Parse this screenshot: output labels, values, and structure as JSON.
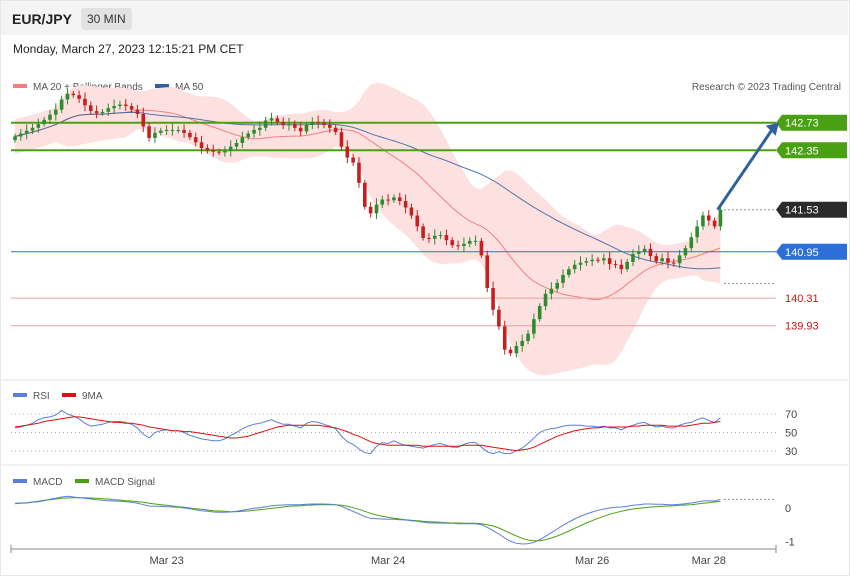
{
  "header": {
    "symbol": "EUR/JPY",
    "timeframe": "30 MIN",
    "datetime": "Monday, March 27, 2023 12:15:21 PM CET"
  },
  "legend": {
    "ma20_label": "MA 20 + Bollinger Bands",
    "ma50_label": "MA 50",
    "credit": "Research © 2023 Trading Central",
    "rsi_label": "RSI",
    "rsi_ma_label": "9MA",
    "macd_label": "MACD",
    "macd_signal_label": "MACD Signal"
  },
  "colors": {
    "ma20": "#f08080",
    "ma50": "#2f5f9e",
    "bb_fill": "#fde1e1",
    "bull": "#2e8b2e",
    "bear": "#c81e1e",
    "resistance": "#4aa013",
    "pivot": "#2d6fd8",
    "support": "#e8a0a0",
    "support_text": "#cc1111",
    "last": "#2b2b2b",
    "arrow": "#2f5f9e",
    "rsi": "#5b7fd6",
    "rsi_ma": "#dd1111",
    "macd": "#5b7fd6",
    "macd_signal": "#4aa013"
  },
  "chart_data": [
    {
      "type": "candlestick",
      "ylim": [
        139.25,
        143.25
      ],
      "x_ticks": [
        "Mar 23",
        "Mar 24",
        "Mar 26",
        "Mar 28"
      ],
      "x_tick_index": [
        26,
        64,
        99,
        119
      ],
      "levels": [
        {
          "label": "142.73",
          "value": 142.73,
          "kind": "resistance"
        },
        {
          "label": "142.35",
          "value": 142.35,
          "kind": "resistance"
        },
        {
          "label": "141.53",
          "value": 141.53,
          "kind": "last"
        },
        {
          "label": "140.95",
          "value": 140.95,
          "kind": "pivot"
        },
        {
          "label": "140.31",
          "value": 140.31,
          "kind": "support"
        },
        {
          "label": "139.93",
          "value": 139.93,
          "kind": "support"
        }
      ],
      "forecast_arrow": {
        "from": [
          120,
          141.53
        ],
        "to": [
          131,
          142.73
        ]
      },
      "closes": [
        142.54,
        142.58,
        142.62,
        142.66,
        142.71,
        142.77,
        142.84,
        142.91,
        143.05,
        143.13,
        143.11,
        143.06,
        142.97,
        142.89,
        142.86,
        142.88,
        142.93,
        142.96,
        142.98,
        142.96,
        142.91,
        142.85,
        142.68,
        142.52,
        142.59,
        142.62,
        142.63,
        142.63,
        142.63,
        142.59,
        142.53,
        142.46,
        142.38,
        142.35,
        142.33,
        142.32,
        142.34,
        142.4,
        142.45,
        142.53,
        142.58,
        142.63,
        142.66,
        142.76,
        142.79,
        142.74,
        142.7,
        142.71,
        142.66,
        142.61,
        142.7,
        142.74,
        142.73,
        142.7,
        142.66,
        142.6,
        142.4,
        142.25,
        142.18,
        141.9,
        141.57,
        141.48,
        141.6,
        141.67,
        141.66,
        141.7,
        141.65,
        141.56,
        141.45,
        141.3,
        141.14,
        141.13,
        141.17,
        141.18,
        141.11,
        141.04,
        141.03,
        141.06,
        141.1,
        141.1,
        140.9,
        140.45,
        140.15,
        139.92,
        139.6,
        139.55,
        139.65,
        139.72,
        139.82,
        140.02,
        140.2,
        140.37,
        140.44,
        140.52,
        140.63,
        140.71,
        140.77,
        140.8,
        140.82,
        140.84,
        140.83,
        140.86,
        140.78,
        140.77,
        140.71,
        140.81,
        140.92,
        140.95,
        140.99,
        140.89,
        140.82,
        140.86,
        140.8,
        140.79,
        140.9,
        141.0,
        141.15,
        141.3,
        141.45,
        141.38,
        141.3,
        141.53
      ]
    },
    {
      "type": "line",
      "name": "RSI",
      "ylim": [
        20,
        80
      ],
      "y_ticks": [
        70,
        50,
        30
      ],
      "rsi": [
        55,
        56,
        58,
        60,
        64,
        66,
        67,
        69,
        74,
        70,
        68,
        65,
        60,
        57,
        58,
        59,
        61,
        62,
        62,
        61,
        59,
        55,
        48,
        44,
        50,
        52,
        53,
        52,
        52,
        50,
        47,
        45,
        43,
        42,
        41,
        41,
        43,
        47,
        50,
        54,
        57,
        59,
        60,
        62,
        64,
        61,
        59,
        59,
        57,
        55,
        60,
        62,
        61,
        59,
        57,
        54,
        46,
        40,
        37,
        32,
        28,
        27,
        35,
        39,
        38,
        41,
        38,
        36,
        35,
        34,
        33,
        35,
        37,
        38,
        36,
        34,
        34,
        37,
        39,
        39,
        34,
        29,
        27,
        29,
        27,
        27,
        30,
        33,
        38,
        44,
        50,
        53,
        54,
        55,
        57,
        58,
        58,
        58,
        57,
        57,
        56,
        57,
        55,
        55,
        53,
        56,
        58,
        60,
        61,
        58,
        56,
        57,
        55,
        55,
        58,
        60,
        61,
        64,
        66,
        63,
        61,
        66
      ],
      "rsi_ma": [
        56,
        57,
        58,
        59,
        60,
        62,
        63,
        64,
        65,
        66,
        67,
        67,
        66,
        65,
        64,
        63,
        62,
        61,
        61,
        60,
        60,
        59,
        58,
        56,
        55,
        54,
        53,
        52,
        52,
        51,
        51,
        50,
        49,
        48,
        47,
        46,
        45,
        44,
        44,
        45,
        46,
        48,
        50,
        52,
        54,
        56,
        57,
        58,
        58,
        58,
        58,
        58,
        58,
        57,
        56,
        55,
        53,
        51,
        48,
        46,
        43,
        40,
        38,
        37,
        36,
        36,
        36,
        36,
        36,
        36,
        35,
        35,
        35,
        35,
        35,
        35,
        35,
        36,
        36,
        36,
        36,
        35,
        34,
        33,
        32,
        31,
        30,
        31,
        32,
        34,
        37,
        40,
        43,
        46,
        48,
        50,
        52,
        53,
        54,
        55,
        55,
        56,
        56,
        56,
        56,
        56,
        57,
        57,
        58,
        58,
        58,
        58,
        57,
        57,
        57,
        57,
        58,
        59,
        60,
        60,
        61,
        62
      ]
    },
    {
      "type": "line",
      "name": "MACD",
      "ylim": [
        -1.2,
        0.6
      ],
      "y_ticks": [
        0,
        -1
      ],
      "macd": [
        0.13,
        0.14,
        0.15,
        0.17,
        0.19,
        0.22,
        0.26,
        0.29,
        0.33,
        0.35,
        0.33,
        0.31,
        0.29,
        0.27,
        0.25,
        0.23,
        0.22,
        0.21,
        0.2,
        0.19,
        0.17,
        0.14,
        0.1,
        0.06,
        0.05,
        0.05,
        0.04,
        0.03,
        0.02,
        0.0,
        -0.02,
        -0.05,
        -0.08,
        -0.1,
        -0.12,
        -0.13,
        -0.13,
        -0.12,
        -0.1,
        -0.07,
        -0.04,
        -0.01,
        0.01,
        0.04,
        0.07,
        0.08,
        0.09,
        0.1,
        0.1,
        0.1,
        0.11,
        0.12,
        0.12,
        0.12,
        0.11,
        0.1,
        0.05,
        -0.03,
        -0.1,
        -0.18,
        -0.26,
        -0.31,
        -0.32,
        -0.33,
        -0.34,
        -0.34,
        -0.35,
        -0.36,
        -0.38,
        -0.4,
        -0.43,
        -0.45,
        -0.45,
        -0.45,
        -0.46,
        -0.46,
        -0.47,
        -0.47,
        -0.47,
        -0.47,
        -0.5,
        -0.58,
        -0.68,
        -0.78,
        -0.9,
        -1.0,
        -1.06,
        -1.08,
        -1.07,
        -1.03,
        -0.95,
        -0.85,
        -0.74,
        -0.63,
        -0.52,
        -0.42,
        -0.33,
        -0.25,
        -0.18,
        -0.12,
        -0.07,
        -0.03,
        0.0,
        0.02,
        0.03,
        0.05,
        0.08,
        0.1,
        0.12,
        0.12,
        0.11,
        0.11,
        0.1,
        0.1,
        0.11,
        0.13,
        0.15,
        0.18,
        0.21,
        0.22,
        0.21,
        0.26
      ],
      "macd_signal": [
        0.14,
        0.15,
        0.16,
        0.18,
        0.2,
        0.23,
        0.25,
        0.27,
        0.29,
        0.3,
        0.31,
        0.31,
        0.31,
        0.3,
        0.29,
        0.28,
        0.27,
        0.25,
        0.24,
        0.22,
        0.21,
        0.19,
        0.17,
        0.14,
        0.12,
        0.1,
        0.08,
        0.06,
        0.04,
        0.02,
        0.0,
        -0.02,
        -0.04,
        -0.06,
        -0.08,
        -0.09,
        -0.1,
        -0.11,
        -0.11,
        -0.1,
        -0.09,
        -0.07,
        -0.05,
        -0.03,
        -0.01,
        0.01,
        0.03,
        0.05,
        0.06,
        0.07,
        0.08,
        0.09,
        0.1,
        0.1,
        0.1,
        0.1,
        0.08,
        0.05,
        0.01,
        -0.04,
        -0.1,
        -0.16,
        -0.21,
        -0.25,
        -0.28,
        -0.31,
        -0.33,
        -0.35,
        -0.37,
        -0.38,
        -0.4,
        -0.41,
        -0.42,
        -0.43,
        -0.44,
        -0.45,
        -0.45,
        -0.46,
        -0.46,
        -0.46,
        -0.47,
        -0.5,
        -0.54,
        -0.6,
        -0.68,
        -0.76,
        -0.84,
        -0.91,
        -0.96,
        -0.98,
        -0.98,
        -0.95,
        -0.9,
        -0.84,
        -0.77,
        -0.69,
        -0.61,
        -0.53,
        -0.45,
        -0.38,
        -0.31,
        -0.25,
        -0.19,
        -0.14,
        -0.1,
        -0.06,
        -0.03,
        -0.01,
        0.01,
        0.03,
        0.04,
        0.05,
        0.06,
        0.07,
        0.08,
        0.09,
        0.1,
        0.12,
        0.14,
        0.16,
        0.18,
        0.2
      ]
    }
  ]
}
